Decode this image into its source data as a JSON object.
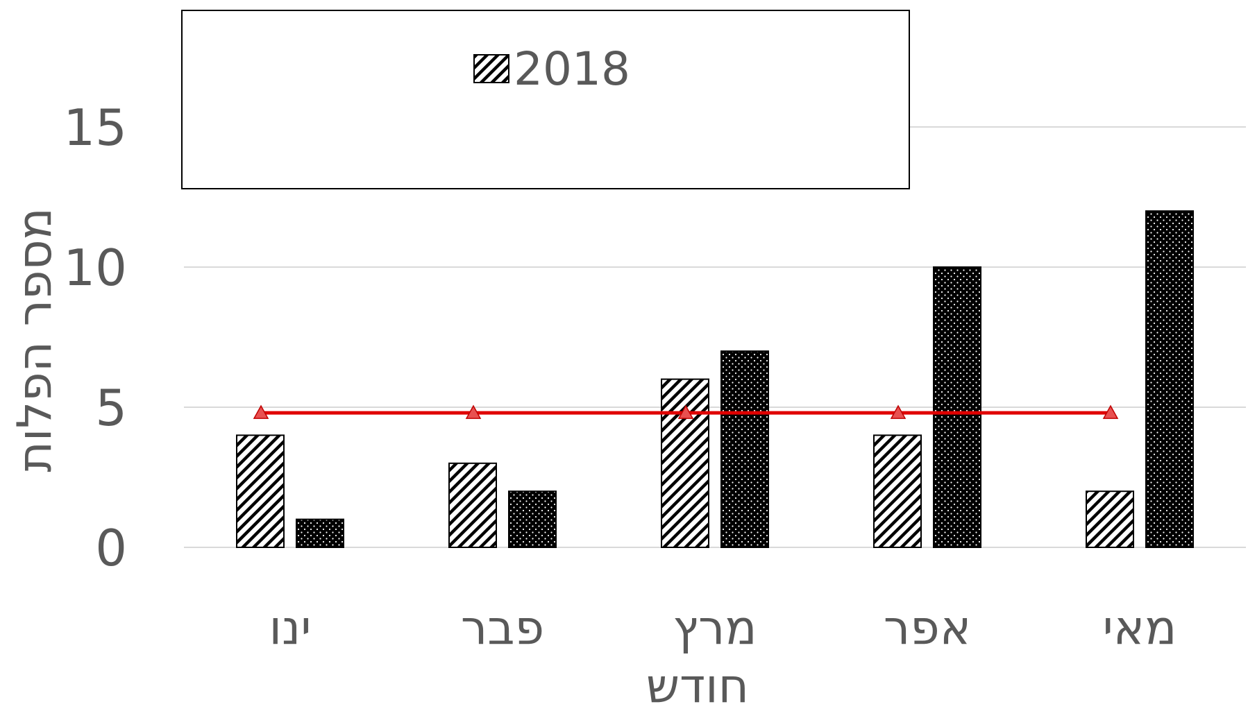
{
  "chart_data": {
    "type": "bar",
    "categories": [
      "ינו",
      "פבר",
      "מרץ",
      "אפר",
      "מאי"
    ],
    "series": [
      {
        "name": "2018",
        "type": "bar",
        "pattern": "diagonal-hatch",
        "values": [
          4,
          3,
          6,
          4,
          2
        ]
      },
      {
        "type": "bar",
        "pattern": "black-dotted",
        "values": [
          1,
          2,
          7,
          10,
          12
        ]
      },
      {
        "type": "line",
        "color": "#e00000",
        "marker": "triangle",
        "values": [
          4.8,
          4.8,
          4.8,
          4.8,
          4.8
        ]
      }
    ],
    "xlabel": "חודש",
    "ylabel": "מספר הפלות",
    "ylim": [
      0,
      15
    ],
    "yticks": [
      0,
      5,
      10,
      15
    ],
    "ytick_labels": [
      "0",
      "5",
      "10",
      "15"
    ],
    "grid": true,
    "legend": {
      "position": "top",
      "entries": [
        "2018"
      ]
    }
  }
}
